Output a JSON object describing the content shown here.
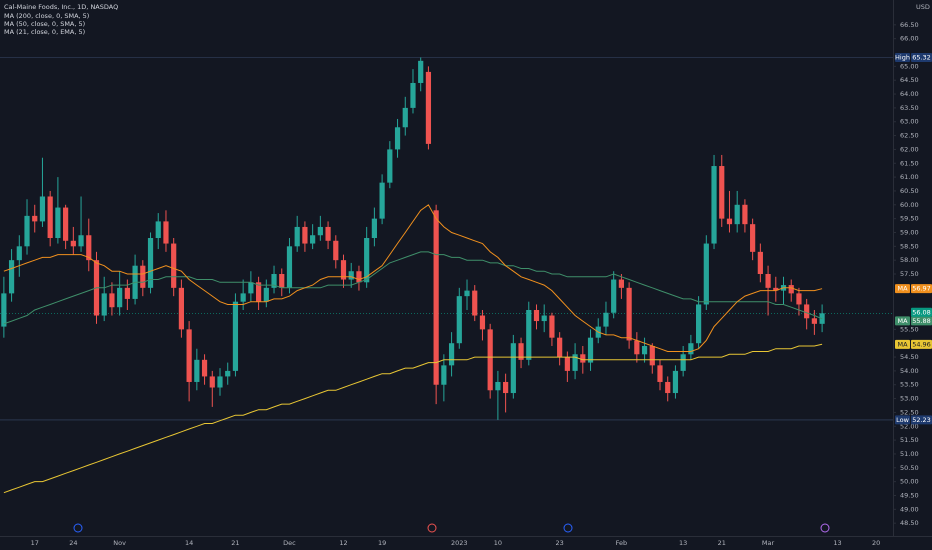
{
  "chart_data": {
    "type": "candlestick",
    "title": "Cal-Maine Foods, Inc., 1D, NASDAQ",
    "currency": "USD",
    "up_color": "#26a69a",
    "down_color": "#ef5350",
    "ylim": [
      48,
      67
    ],
    "yticks": [
      {
        "value": 66.5,
        "label": "66.50"
      },
      {
        "value": 66,
        "label": "66.00"
      },
      {
        "value": 65,
        "label": "65.00"
      },
      {
        "value": 64.5,
        "label": "64.50"
      },
      {
        "value": 64,
        "label": "64.00"
      },
      {
        "value": 63.5,
        "label": "63.50"
      },
      {
        "value": 63,
        "label": "63.00"
      },
      {
        "value": 62.5,
        "label": "62.50"
      },
      {
        "value": 62,
        "label": "62.00"
      },
      {
        "value": 61.5,
        "label": "61.50"
      },
      {
        "value": 61,
        "label": "61.00"
      },
      {
        "value": 60.5,
        "label": "60.50"
      },
      {
        "value": 60,
        "label": "60.00"
      },
      {
        "value": 59.5,
        "label": "59.50"
      },
      {
        "value": 59,
        "label": "59.00"
      },
      {
        "value": 58.5,
        "label": "58.50"
      },
      {
        "value": 58,
        "label": "58.00"
      },
      {
        "value": 57.5,
        "label": "57.50"
      },
      {
        "value": 55.5,
        "label": "55.50"
      },
      {
        "value": 54.5,
        "label": "54.50"
      },
      {
        "value": 54,
        "label": "54.00"
      },
      {
        "value": 53.5,
        "label": "53.50"
      },
      {
        "value": 53,
        "label": "53.00"
      },
      {
        "value": 52.5,
        "label": "52.50"
      },
      {
        "value": 52,
        "label": "52.00"
      },
      {
        "value": 51.5,
        "label": "51.50"
      },
      {
        "value": 51,
        "label": "51.00"
      },
      {
        "value": 50.5,
        "label": "50.50"
      },
      {
        "value": 50,
        "label": "50.00"
      },
      {
        "value": 49.5,
        "label": "49.50"
      },
      {
        "value": 49,
        "label": "49.00"
      },
      {
        "value": 48.5,
        "label": "48.50"
      }
    ],
    "high": {
      "label": "High",
      "value": 65.32
    },
    "low": {
      "label": "Low",
      "value": 52.23
    },
    "last_price": 56.08,
    "last_color": "#089981",
    "categories": [
      null,
      null,
      null,
      null,
      "17",
      null,
      null,
      null,
      null,
      "24",
      null,
      null,
      null,
      null,
      null,
      "Nov",
      null,
      null,
      null,
      null,
      null,
      null,
      null,
      null,
      "14",
      null,
      null,
      null,
      null,
      null,
      "21",
      null,
      null,
      null,
      null,
      null,
      null,
      "Dec",
      null,
      null,
      null,
      null,
      null,
      null,
      "12",
      null,
      null,
      null,
      null,
      "19",
      null,
      null,
      null,
      null,
      null,
      null,
      null,
      null,
      null,
      "2023",
      null,
      null,
      null,
      null,
      "10",
      null,
      null,
      null,
      null,
      null,
      null,
      null,
      "23",
      null,
      null,
      null,
      null,
      null,
      null,
      null,
      "Feb",
      null,
      null,
      null,
      null,
      null,
      null,
      null,
      "13",
      null,
      null,
      null,
      null,
      "21",
      null,
      null,
      null,
      null,
      null,
      "Mar",
      null,
      null,
      null,
      null,
      null,
      null,
      null,
      null,
      "13",
      null,
      null,
      null,
      null,
      "20"
    ],
    "ohlc": [
      [
        55.6,
        57.4,
        55.2,
        56.8
      ],
      [
        56.8,
        58.4,
        56.5,
        58.0
      ],
      [
        58.0,
        58.9,
        57.4,
        58.5
      ],
      [
        58.5,
        60.2,
        58.2,
        59.6
      ],
      [
        59.6,
        60.0,
        59.0,
        59.4
      ],
      [
        59.4,
        61.7,
        59.2,
        60.3
      ],
      [
        60.3,
        60.5,
        58.5,
        58.8
      ],
      [
        58.8,
        61.0,
        58.6,
        59.9
      ],
      [
        59.9,
        60.0,
        58.4,
        58.7
      ],
      [
        58.7,
        59.2,
        58.2,
        58.5
      ],
      [
        58.5,
        60.3,
        58.3,
        58.9
      ],
      [
        58.9,
        59.5,
        57.6,
        58.0
      ],
      [
        58.0,
        58.3,
        55.7,
        56.0
      ],
      [
        56.0,
        57.4,
        55.8,
        56.8
      ],
      [
        56.8,
        57.2,
        56.0,
        56.3
      ],
      [
        56.3,
        57.6,
        56.0,
        57.0
      ],
      [
        57.0,
        57.3,
        56.2,
        56.6
      ],
      [
        56.6,
        58.2,
        56.4,
        57.8
      ],
      [
        57.8,
        58.0,
        56.7,
        57.0
      ],
      [
        57.0,
        59.0,
        56.8,
        58.8
      ],
      [
        58.8,
        59.7,
        58.4,
        59.4
      ],
      [
        59.4,
        59.8,
        58.3,
        58.6
      ],
      [
        58.6,
        58.8,
        56.7,
        57.0
      ],
      [
        57.0,
        57.3,
        55.2,
        55.5
      ],
      [
        55.5,
        55.8,
        52.9,
        53.6
      ],
      [
        53.6,
        54.8,
        53.3,
        54.4
      ],
      [
        54.4,
        54.6,
        53.5,
        53.8
      ],
      [
        53.8,
        54.0,
        52.7,
        53.4
      ],
      [
        53.4,
        54.1,
        53.1,
        53.8
      ],
      [
        53.8,
        54.3,
        53.5,
        54.0
      ],
      [
        54.0,
        56.8,
        53.8,
        56.5
      ],
      [
        56.5,
        57.3,
        56.2,
        56.8
      ],
      [
        56.8,
        57.6,
        56.5,
        57.2
      ],
      [
        57.2,
        57.4,
        56.2,
        56.5
      ],
      [
        56.5,
        57.3,
        56.3,
        57.0
      ],
      [
        57.0,
        57.8,
        56.8,
        57.5
      ],
      [
        57.5,
        57.7,
        56.7,
        57.0
      ],
      [
        57.0,
        58.8,
        56.8,
        58.5
      ],
      [
        58.5,
        59.6,
        58.3,
        59.2
      ],
      [
        59.2,
        59.4,
        58.3,
        58.6
      ],
      [
        58.6,
        59.3,
        58.4,
        58.9
      ],
      [
        58.9,
        59.6,
        58.7,
        59.2
      ],
      [
        59.2,
        59.4,
        58.4,
        58.7
      ],
      [
        58.7,
        58.9,
        57.7,
        58.0
      ],
      [
        58.0,
        58.2,
        57.0,
        57.3
      ],
      [
        57.3,
        57.9,
        57.0,
        57.6
      ],
      [
        57.6,
        57.8,
        56.9,
        57.2
      ],
      [
        57.2,
        59.2,
        57.0,
        58.8
      ],
      [
        58.8,
        59.9,
        58.5,
        59.5
      ],
      [
        59.5,
        61.1,
        59.3,
        60.8
      ],
      [
        60.8,
        62.3,
        60.6,
        62.0
      ],
      [
        62.0,
        63.1,
        61.7,
        62.8
      ],
      [
        62.8,
        63.9,
        62.5,
        63.5
      ],
      [
        63.5,
        64.9,
        63.3,
        64.4
      ],
      [
        64.4,
        65.32,
        64.1,
        65.2
      ],
      [
        64.8,
        65.0,
        62.0,
        62.2
      ],
      [
        59.8,
        60.0,
        52.8,
        53.5
      ],
      [
        53.5,
        54.6,
        52.9,
        54.2
      ],
      [
        54.2,
        55.4,
        53.8,
        55.0
      ],
      [
        55.0,
        57.0,
        54.8,
        56.7
      ],
      [
        56.7,
        57.3,
        56.2,
        56.9
      ],
      [
        56.9,
        57.1,
        55.8,
        56.0
      ],
      [
        56.0,
        56.2,
        55.1,
        55.5
      ],
      [
        55.5,
        55.7,
        53.0,
        53.3
      ],
      [
        53.3,
        54.0,
        52.23,
        53.6
      ],
      [
        53.6,
        53.9,
        52.5,
        53.2
      ],
      [
        53.2,
        55.3,
        53.0,
        55.0
      ],
      [
        55.0,
        55.2,
        54.1,
        54.4
      ],
      [
        54.4,
        56.5,
        54.2,
        56.2
      ],
      [
        56.2,
        56.4,
        55.5,
        55.8
      ],
      [
        55.8,
        56.4,
        55.4,
        56.0
      ],
      [
        56.0,
        56.1,
        54.9,
        55.2
      ],
      [
        55.2,
        55.4,
        54.2,
        54.5
      ],
      [
        54.5,
        54.7,
        53.6,
        54.0
      ],
      [
        54.0,
        55.0,
        53.7,
        54.6
      ],
      [
        54.6,
        54.9,
        53.9,
        54.3
      ],
      [
        54.3,
        55.5,
        54.0,
        55.2
      ],
      [
        55.2,
        55.9,
        55.0,
        55.6
      ],
      [
        55.6,
        56.5,
        55.3,
        56.1
      ],
      [
        56.1,
        57.6,
        55.9,
        57.3
      ],
      [
        57.3,
        57.5,
        56.6,
        57.0
      ],
      [
        57.0,
        57.2,
        54.8,
        55.1
      ],
      [
        55.1,
        55.4,
        54.3,
        54.6
      ],
      [
        54.6,
        55.2,
        54.3,
        54.9
      ],
      [
        54.9,
        55.0,
        53.9,
        54.2
      ],
      [
        54.2,
        54.4,
        53.3,
        53.6
      ],
      [
        53.6,
        53.8,
        52.9,
        53.2
      ],
      [
        53.2,
        54.2,
        53.0,
        54.0
      ],
      [
        54.0,
        54.9,
        53.8,
        54.6
      ],
      [
        54.6,
        55.3,
        54.4,
        55.0
      ],
      [
        55.0,
        56.7,
        54.8,
        56.4
      ],
      [
        56.4,
        58.9,
        56.2,
        58.6
      ],
      [
        58.6,
        61.8,
        58.4,
        61.4
      ],
      [
        61.4,
        61.8,
        59.2,
        59.5
      ],
      [
        59.5,
        60.5,
        59.0,
        59.3
      ],
      [
        59.3,
        60.5,
        59.0,
        60.0
      ],
      [
        60.0,
        60.2,
        59.0,
        59.3
      ],
      [
        59.3,
        59.5,
        58.0,
        58.3
      ],
      [
        58.3,
        58.6,
        57.2,
        57.5
      ],
      [
        57.5,
        57.8,
        56.0,
        57.0
      ],
      [
        57.0,
        57.4,
        56.5,
        56.9
      ],
      [
        56.9,
        57.4,
        56.4,
        57.1
      ],
      [
        57.1,
        57.3,
        56.5,
        56.8
      ],
      [
        56.8,
        57.0,
        56.0,
        56.4
      ],
      [
        56.4,
        56.6,
        55.5,
        55.9
      ],
      [
        55.9,
        56.2,
        55.3,
        55.7
      ],
      [
        55.7,
        56.4,
        55.4,
        56.08
      ],
      null,
      null,
      null,
      null,
      null,
      null,
      null
    ],
    "series": [
      {
        "name": "MA (200, close, 0, SMA, 5)",
        "color": "#e8c634",
        "tag": "MA",
        "tag_text": "#131722",
        "last": 54.96,
        "values": [
          49.6,
          49.7,
          49.8,
          49.9,
          50.0,
          50.0,
          50.1,
          50.2,
          50.3,
          50.4,
          50.5,
          50.6,
          50.7,
          50.8,
          50.9,
          51.0,
          51.1,
          51.2,
          51.3,
          51.4,
          51.5,
          51.6,
          51.7,
          51.8,
          51.9,
          52.0,
          52.1,
          52.1,
          52.2,
          52.3,
          52.4,
          52.4,
          52.5,
          52.6,
          52.6,
          52.7,
          52.8,
          52.8,
          52.9,
          53.0,
          53.1,
          53.2,
          53.3,
          53.3,
          53.4,
          53.5,
          53.6,
          53.7,
          53.8,
          53.9,
          53.9,
          54.0,
          54.1,
          54.1,
          54.2,
          54.3,
          54.3,
          54.4,
          54.4,
          54.4,
          54.4,
          54.5,
          54.5,
          54.5,
          54.5,
          54.5,
          54.5,
          54.5,
          54.5,
          54.5,
          54.5,
          54.5,
          54.5,
          54.5,
          54.5,
          54.4,
          54.4,
          54.4,
          54.4,
          54.4,
          54.4,
          54.4,
          54.4,
          54.4,
          54.4,
          54.4,
          54.4,
          54.4,
          54.4,
          54.4,
          54.5,
          54.5,
          54.5,
          54.5,
          54.6,
          54.6,
          54.6,
          54.7,
          54.7,
          54.7,
          54.8,
          54.8,
          54.8,
          54.9,
          54.9,
          54.9,
          54.96,
          null,
          null,
          null,
          null,
          null,
          null,
          null
        ]
      },
      {
        "name": "MA (50, close, 0, SMA, 5)",
        "color": "#3f8f6a",
        "tag": "MA",
        "tag_text": "#ffffff",
        "last": 55.88,
        "values": [
          55.7,
          55.8,
          55.9,
          56.0,
          56.2,
          56.3,
          56.4,
          56.5,
          56.6,
          56.7,
          56.8,
          56.9,
          57.0,
          57.0,
          57.1,
          57.1,
          57.1,
          57.2,
          57.2,
          57.3,
          57.3,
          57.4,
          57.4,
          57.4,
          57.4,
          57.3,
          57.3,
          57.3,
          57.2,
          57.2,
          57.2,
          57.2,
          57.2,
          57.1,
          57.1,
          57.1,
          57.0,
          57.0,
          57.0,
          57.0,
          57.0,
          57.0,
          57.1,
          57.1,
          57.1,
          57.1,
          57.2,
          57.3,
          57.5,
          57.7,
          57.9,
          58.0,
          58.1,
          58.2,
          58.3,
          58.3,
          58.2,
          58.2,
          58.1,
          58.1,
          58.0,
          58.0,
          58.0,
          57.9,
          57.9,
          57.8,
          57.8,
          57.7,
          57.7,
          57.6,
          57.6,
          57.5,
          57.5,
          57.4,
          57.4,
          57.4,
          57.4,
          57.4,
          57.4,
          57.5,
          57.4,
          57.3,
          57.2,
          57.1,
          57.0,
          56.9,
          56.8,
          56.7,
          56.6,
          56.6,
          56.5,
          56.5,
          56.5,
          56.5,
          56.5,
          56.5,
          56.5,
          56.5,
          56.5,
          56.5,
          56.4,
          56.4,
          56.3,
          56.2,
          56.1,
          56.0,
          55.88,
          null,
          null,
          null,
          null,
          null,
          null,
          null
        ]
      },
      {
        "name": "MA (21, close, 0, EMA, 5)",
        "color": "#f0901e",
        "tag": "MA",
        "tag_text": "#ffffff",
        "last": 56.97,
        "values": [
          57.6,
          57.7,
          57.8,
          57.9,
          58.0,
          58.1,
          58.1,
          58.2,
          58.2,
          58.2,
          58.2,
          58.1,
          57.9,
          57.8,
          57.6,
          57.6,
          57.5,
          57.5,
          57.5,
          57.6,
          57.7,
          57.8,
          57.7,
          57.6,
          57.3,
          57.1,
          56.9,
          56.7,
          56.5,
          56.4,
          56.4,
          56.4,
          56.5,
          56.5,
          56.5,
          56.6,
          56.6,
          56.7,
          56.9,
          57.0,
          57.1,
          57.3,
          57.4,
          57.4,
          57.4,
          57.4,
          57.3,
          57.4,
          57.6,
          57.8,
          58.2,
          58.6,
          59.0,
          59.4,
          59.8,
          60.0,
          59.5,
          59.2,
          59.0,
          58.9,
          58.8,
          58.7,
          58.6,
          58.3,
          58.1,
          57.8,
          57.6,
          57.4,
          57.3,
          57.2,
          57.1,
          56.9,
          56.6,
          56.3,
          56.0,
          55.8,
          55.6,
          55.4,
          55.3,
          55.3,
          55.2,
          55.2,
          55.1,
          55.0,
          54.9,
          54.8,
          54.7,
          54.7,
          54.7,
          54.7,
          54.8,
          55.1,
          55.6,
          55.9,
          56.2,
          56.5,
          56.7,
          56.8,
          56.9,
          56.9,
          56.9,
          57.0,
          57.0,
          56.9,
          56.9,
          56.9,
          56.97,
          null,
          null,
          null,
          null,
          null,
          null,
          null
        ]
      }
    ]
  }
}
